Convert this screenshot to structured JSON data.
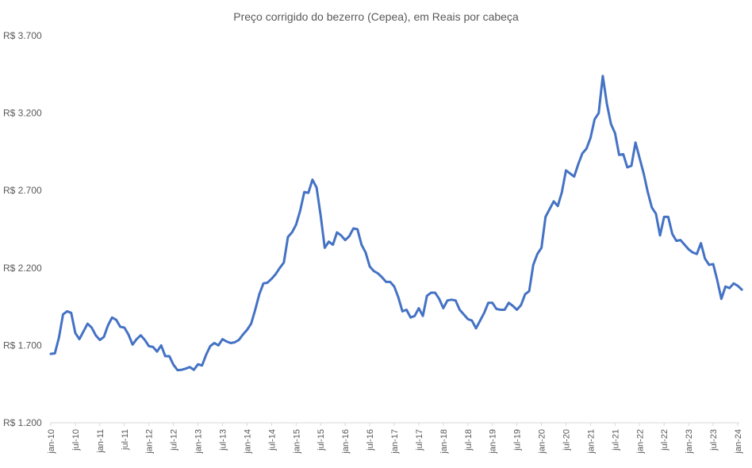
{
  "chart_data": {
    "type": "line",
    "title": "Preço corrigido do bezerro (Cepea), em Reais por cabeça",
    "xlabel": "",
    "ylabel": "",
    "ylim": [
      1200,
      3700
    ],
    "yticks": [
      1200,
      1700,
      2200,
      2700,
      3200,
      3700
    ],
    "ytick_labels": [
      "R$ 1.200",
      "R$ 1.700",
      "R$ 2.200",
      "R$ 2.700",
      "R$ 3.200",
      "R$ 3.700"
    ],
    "xticks": [
      "jan-10",
      "jul-10",
      "jan-11",
      "jul-11",
      "jan-12",
      "jul-12",
      "jan-13",
      "jul-13",
      "jan-14",
      "jul-14",
      "jan-15",
      "jul-15",
      "jan-16",
      "jul-16",
      "jan-17",
      "jul-17",
      "jan-18",
      "jul-18",
      "jan-19",
      "jul-19",
      "jan-20",
      "jul-20",
      "jan-21",
      "jul-21",
      "jan-22",
      "jul-22",
      "jan-23",
      "jul-23",
      "jan-24"
    ],
    "grid": false,
    "legend": "none",
    "line_color": "#4472C4",
    "series": [
      {
        "x_start": "jan-10",
        "frequency": "monthly",
        "values": [
          1645,
          1648,
          1750,
          1900,
          1920,
          1910,
          1780,
          1740,
          1790,
          1840,
          1815,
          1765,
          1735,
          1755,
          1830,
          1880,
          1865,
          1820,
          1815,
          1770,
          1705,
          1740,
          1765,
          1735,
          1695,
          1690,
          1660,
          1700,
          1630,
          1630,
          1575,
          1540,
          1542,
          1550,
          1560,
          1542,
          1578,
          1570,
          1640,
          1695,
          1715,
          1700,
          1740,
          1725,
          1715,
          1720,
          1735,
          1770,
          1800,
          1840,
          1930,
          2030,
          2100,
          2105,
          2130,
          2160,
          2200,
          2235,
          2400,
          2430,
          2480,
          2570,
          2690,
          2685,
          2770,
          2720,
          2540,
          2330,
          2370,
          2350,
          2430,
          2410,
          2380,
          2405,
          2455,
          2450,
          2350,
          2300,
          2210,
          2180,
          2165,
          2140,
          2110,
          2110,
          2080,
          2010,
          1920,
          1930,
          1880,
          1890,
          1940,
          1890,
          2020,
          2040,
          2040,
          2000,
          1940,
          1990,
          1995,
          1990,
          1930,
          1900,
          1870,
          1860,
          1810,
          1860,
          1910,
          1975,
          1975,
          1935,
          1930,
          1930,
          1975,
          1955,
          1930,
          1960,
          2030,
          2050,
          2220,
          2290,
          2330,
          2530,
          2580,
          2630,
          2600,
          2690,
          2830,
          2810,
          2790,
          2870,
          2940,
          2970,
          3040,
          3160,
          3200,
          3440,
          3260,
          3130,
          3070,
          2930,
          2935,
          2850,
          2860,
          3010,
          2910,
          2810,
          2690,
          2590,
          2550,
          2410,
          2530,
          2530,
          2420,
          2375,
          2380,
          2350,
          2320,
          2300,
          2290,
          2360,
          2260,
          2220,
          2225,
          2120,
          2000,
          2080,
          2070,
          2100,
          2085,
          2060
        ]
      }
    ]
  }
}
